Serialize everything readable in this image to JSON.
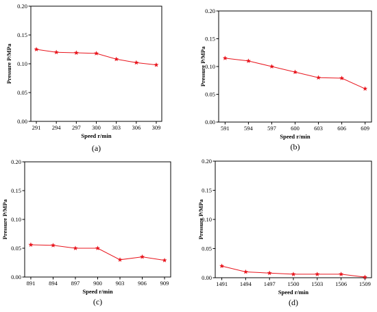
{
  "colors": {
    "series": "#e8141c",
    "axis": "#000000",
    "background": "#ffffff"
  },
  "chart_data": [
    {
      "type": "line",
      "panel_label": "(a)",
      "xlabel": "Speed r/min",
      "ylabel": "Pressure P/MPa",
      "x": [
        291,
        294,
        297,
        300,
        303,
        306,
        309
      ],
      "xticks": [
        "291",
        "294",
        "297",
        "300",
        "303",
        "306",
        "309"
      ],
      "yticks": [
        "0.00",
        "0.05",
        "0.10",
        "0.15",
        "0.20"
      ],
      "ylim": [
        0,
        0.2
      ],
      "grid": false,
      "marker": "star",
      "series": [
        {
          "values": [
            0.125,
            0.12,
            0.119,
            0.118,
            0.108,
            0.102,
            0.098
          ]
        }
      ]
    },
    {
      "type": "line",
      "panel_label": "(b)",
      "xlabel": "Speed r/min",
      "ylabel": "Pressure P/MPa",
      "x": [
        591,
        594,
        597,
        600,
        603,
        606,
        609
      ],
      "xticks": [
        "591",
        "594",
        "597",
        "600",
        "603",
        "606",
        "609"
      ],
      "yticks": [
        "0.00",
        "0.05",
        "0.10",
        "0.15",
        "0.20"
      ],
      "ylim": [
        0,
        0.2
      ],
      "grid": false,
      "marker": "star",
      "series": [
        {
          "values": [
            0.115,
            0.11,
            0.1,
            0.09,
            0.08,
            0.079,
            0.06
          ]
        }
      ]
    },
    {
      "type": "line",
      "panel_label": "(c)",
      "xlabel": "Speed r/min",
      "ylabel": "Pressure P/MPa",
      "x": [
        891,
        894,
        897,
        900,
        903,
        906,
        909
      ],
      "xticks": [
        "891",
        "894",
        "897",
        "900",
        "903",
        "906",
        "909"
      ],
      "yticks": [
        "0.00",
        "0.05",
        "0.10",
        "0.15",
        "0.20"
      ],
      "ylim": [
        0,
        0.2
      ],
      "grid": false,
      "marker": "star",
      "series": [
        {
          "values": [
            0.056,
            0.055,
            0.05,
            0.05,
            0.03,
            0.035,
            0.029
          ]
        }
      ]
    },
    {
      "type": "line",
      "panel_label": "(d)",
      "xlabel": "Speed r/min",
      "ylabel": "Pressure P/MPa",
      "x": [
        1491,
        1494,
        1497,
        1500,
        1503,
        1506,
        1509
      ],
      "xticks": [
        "1491",
        "1494",
        "1497",
        "1500",
        "1503",
        "1506",
        "1509"
      ],
      "yticks": [
        "0.00",
        "0.05",
        "0.10",
        "0.15",
        "0.20"
      ],
      "ylim": [
        0,
        0.2
      ],
      "grid": false,
      "marker": "star",
      "series": [
        {
          "values": [
            0.02,
            0.01,
            0.008,
            0.006,
            0.006,
            0.006,
            0.001
          ]
        }
      ]
    }
  ]
}
